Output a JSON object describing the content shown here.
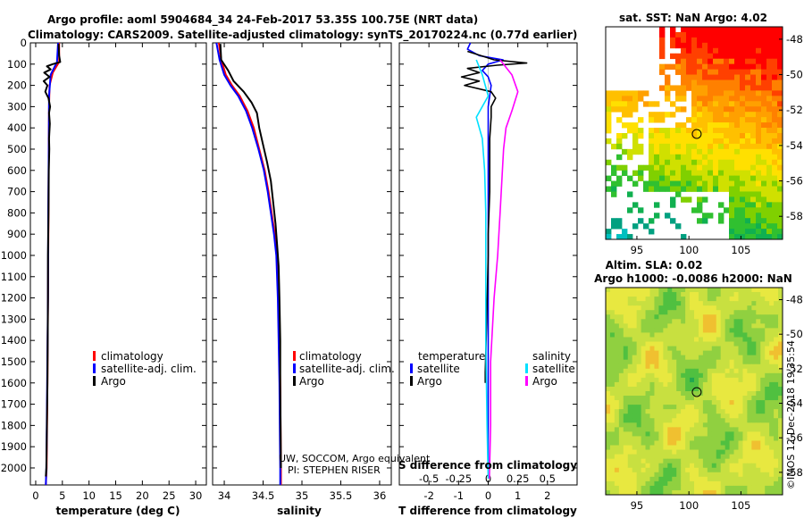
{
  "title": {
    "line1": "Argo profile: aoml 5904684_34 24-Feb-2017 53.35S 100.75E (NRT data)",
    "line2": "Climatology: CARS2009. Satellite-adjusted climatology: synTS_20170224.nc (0.77d earlier)"
  },
  "colors": {
    "climatology": "#ff0000",
    "satellite": "#0000ff",
    "argo": "#000000",
    "argo_salinity_diff": "#ff00ff",
    "satellite_salinity_diff": "#00e0ff"
  },
  "chart_data": [
    {
      "id": "temperature",
      "type": "line",
      "xlabel": "temperature (deg C)",
      "ylabel": "",
      "xlim": [
        -1,
        32
      ],
      "ylim": [
        2080,
        0
      ],
      "xticks": [
        0,
        5,
        10,
        15,
        20,
        25,
        30
      ],
      "yticks": [
        0,
        100,
        200,
        300,
        400,
        500,
        600,
        700,
        800,
        900,
        1000,
        1100,
        1200,
        1300,
        1400,
        1500,
        1600,
        1700,
        1800,
        1900,
        2000
      ],
      "legend": [
        "climatology",
        "satellite-adj. clim.",
        "Argo"
      ],
      "series": [
        {
          "name": "climatology",
          "color": "#ff0000",
          "points": [
            [
              4.4,
              0
            ],
            [
              4.4,
              90
            ],
            [
              3.2,
              140
            ],
            [
              2.6,
              200
            ],
            [
              2.5,
              300
            ],
            [
              2.45,
              500
            ],
            [
              2.4,
              800
            ],
            [
              2.3,
              1200
            ],
            [
              2.2,
              1600
            ],
            [
              2.05,
              2000
            ],
            [
              1.9,
              2080
            ]
          ]
        },
        {
          "name": "satellite-adj. clim.",
          "color": "#0000ff",
          "points": [
            [
              4.2,
              0
            ],
            [
              4.0,
              90
            ],
            [
              2.8,
              150
            ],
            [
              2.5,
              250
            ],
            [
              2.45,
              500
            ],
            [
              2.35,
              800
            ],
            [
              2.3,
              1200
            ],
            [
              2.15,
              1600
            ],
            [
              2.0,
              2000
            ],
            [
              1.9,
              2080
            ]
          ]
        },
        {
          "name": "Argo",
          "color": "#000000",
          "points": [
            [
              4.3,
              5
            ],
            [
              4.4,
              60
            ],
            [
              4.6,
              90
            ],
            [
              3.2,
              100
            ],
            [
              2.1,
              110
            ],
            [
              2.8,
              125
            ],
            [
              1.6,
              140
            ],
            [
              2.6,
              160
            ],
            [
              1.5,
              180
            ],
            [
              2.2,
              200
            ],
            [
              1.8,
              230
            ],
            [
              2.4,
              260
            ],
            [
              2.7,
              300
            ],
            [
              2.5,
              330
            ],
            [
              2.65,
              380
            ],
            [
              2.5,
              450
            ],
            [
              2.55,
              500
            ],
            [
              2.45,
              600
            ],
            [
              2.4,
              800
            ],
            [
              2.3,
              1000
            ],
            [
              2.3,
              1200
            ],
            [
              2.25,
              1400
            ],
            [
              2.2,
              1600
            ],
            [
              2.1,
              1800
            ],
            [
              2.0,
              2000
            ],
            [
              1.9,
              2040
            ]
          ]
        }
      ]
    },
    {
      "id": "salinity",
      "type": "line",
      "xlabel": "salinity",
      "xlim": [
        33.85,
        36.15
      ],
      "ylim": [
        2080,
        0
      ],
      "xticks": [
        34,
        34.5,
        35,
        35.5,
        36
      ],
      "legend": [
        "climatology",
        "satellite-adj. clim.",
        "Argo"
      ],
      "series": [
        {
          "name": "climatology",
          "color": "#ff0000",
          "points": [
            [
              33.93,
              0
            ],
            [
              33.96,
              80
            ],
            [
              34.02,
              150
            ],
            [
              34.1,
              200
            ],
            [
              34.2,
              250
            ],
            [
              34.3,
              320
            ],
            [
              34.38,
              400
            ],
            [
              34.45,
              500
            ],
            [
              34.52,
              600
            ],
            [
              34.57,
              700
            ],
            [
              34.61,
              800
            ],
            [
              34.65,
              900
            ],
            [
              34.68,
              1000
            ],
            [
              34.7,
              1200
            ],
            [
              34.71,
              1400
            ],
            [
              34.72,
              1600
            ],
            [
              34.725,
              1800
            ],
            [
              34.73,
              2000
            ],
            [
              34.73,
              2080
            ]
          ]
        },
        {
          "name": "satellite-adj. clim.",
          "color": "#0000ff",
          "points": [
            [
              33.9,
              0
            ],
            [
              33.94,
              80
            ],
            [
              34.0,
              150
            ],
            [
              34.08,
              200
            ],
            [
              34.18,
              250
            ],
            [
              34.28,
              320
            ],
            [
              34.36,
              400
            ],
            [
              34.44,
              500
            ],
            [
              34.51,
              600
            ],
            [
              34.56,
              700
            ],
            [
              34.6,
              800
            ],
            [
              34.64,
              900
            ],
            [
              34.67,
              1000
            ],
            [
              34.69,
              1200
            ],
            [
              34.7,
              1400
            ],
            [
              34.71,
              1600
            ],
            [
              34.715,
              1800
            ],
            [
              34.72,
              2000
            ],
            [
              34.72,
              2080
            ]
          ]
        },
        {
          "name": "Argo",
          "color": "#000000",
          "points": [
            [
              33.95,
              5
            ],
            [
              33.96,
              80
            ],
            [
              34.05,
              130
            ],
            [
              34.12,
              180
            ],
            [
              34.25,
              230
            ],
            [
              34.35,
              280
            ],
            [
              34.42,
              330
            ],
            [
              34.45,
              400
            ],
            [
              34.5,
              480
            ],
            [
              34.55,
              560
            ],
            [
              34.6,
              650
            ],
            [
              34.63,
              750
            ],
            [
              34.66,
              850
            ],
            [
              34.68,
              950
            ],
            [
              34.7,
              1050
            ],
            [
              34.71,
              1200
            ],
            [
              34.72,
              1400
            ],
            [
              34.72,
              1600
            ],
            [
              34.725,
              1800
            ],
            [
              34.73,
              2000
            ]
          ]
        }
      ]
    },
    {
      "id": "difference",
      "type": "line",
      "xlabel": "T difference from climatology",
      "xlabel_top": "S difference from climatology",
      "xlim": [
        -3,
        3
      ],
      "ylim": [
        2080,
        0
      ],
      "xticks": [
        -2,
        -1,
        0,
        1,
        2
      ],
      "xticks_top": [
        -0.5,
        -0.25,
        0,
        0.25,
        0.5
      ],
      "xtick_labels_top": [
        "-0.5",
        "-0.25",
        "0",
        "0.25",
        "0.5"
      ],
      "legend_temperature_title": "temperature",
      "legend_salinity_title": "salinity",
      "legend_temperature": [
        "satellite",
        "Argo"
      ],
      "legend_salinity": [
        "satellite",
        "Argo"
      ],
      "series": [
        {
          "name": "T satellite",
          "color": "#0000ff",
          "points": [
            [
              -0.6,
              0
            ],
            [
              -0.7,
              30
            ],
            [
              -0.3,
              60
            ],
            [
              0.5,
              80
            ],
            [
              0.0,
              100
            ],
            [
              -0.2,
              130
            ],
            [
              0.0,
              160
            ],
            [
              0.1,
              200
            ],
            [
              0.0,
              300
            ],
            [
              0.0,
              500
            ],
            [
              0.0,
              1000
            ],
            [
              0.0,
              2000
            ]
          ]
        },
        {
          "name": "T Argo",
          "color": "#000000",
          "points": [
            [
              -0.7,
              40
            ],
            [
              0.2,
              80
            ],
            [
              1.3,
              95
            ],
            [
              0.3,
              105
            ],
            [
              -0.7,
              120
            ],
            [
              -0.3,
              140
            ],
            [
              -0.9,
              160
            ],
            [
              -0.3,
              180
            ],
            [
              -0.8,
              200
            ],
            [
              0.1,
              230
            ],
            [
              0.25,
              260
            ],
            [
              0.1,
              300
            ],
            [
              0.1,
              350
            ],
            [
              0.05,
              450
            ],
            [
              0.05,
              550
            ],
            [
              0.05,
              700
            ],
            [
              0.0,
              900
            ],
            [
              0.0,
              1000
            ],
            [
              -0.05,
              1300
            ],
            [
              -0.1,
              1550
            ],
            [
              -0.1,
              1600
            ]
          ]
        },
        {
          "name": "S satellite",
          "color": "#00e0ff",
          "points": [
            [
              -0.1,
              80
            ],
            [
              -0.05,
              150
            ],
            [
              0.0,
              250
            ],
            [
              -0.1,
              350
            ],
            [
              -0.05,
              450
            ],
            [
              -0.03,
              600
            ],
            [
              -0.02,
              800
            ],
            [
              -0.02,
              1000
            ],
            [
              -0.02,
              1400
            ],
            [
              -0.01,
              1800
            ],
            [
              0.0,
              2050
            ]
          ]
        },
        {
          "name": "S Argo",
          "color": "#ff00ff",
          "points": [
            [
              0.1,
              80
            ],
            [
              0.2,
              150
            ],
            [
              0.25,
              230
            ],
            [
              0.2,
              320
            ],
            [
              0.15,
              400
            ],
            [
              0.13,
              500
            ],
            [
              0.12,
              600
            ],
            [
              0.1,
              800
            ],
            [
              0.08,
              1000
            ],
            [
              0.05,
              1200
            ],
            [
              0.02,
              1500
            ],
            [
              0.02,
              1800
            ],
            [
              0.01,
              2050
            ]
          ]
        }
      ]
    },
    {
      "id": "sst_map",
      "type": "heatmap",
      "title": "sat. SST: NaN Argo: 4.02",
      "xticks": [
        95,
        100,
        105
      ],
      "yticks": [
        -48,
        -50,
        -52,
        -54,
        -56,
        -58
      ],
      "xlim": [
        92,
        109
      ],
      "ylim": [
        -59.3,
        -47.3
      ],
      "argo_position": [
        100.75,
        -53.35
      ]
    },
    {
      "id": "sla_map",
      "type": "heatmap",
      "title": "Altim. SLA: 0.02",
      "subtitle": "Argo h1000: -0.0086 h2000: NaN",
      "xticks": [
        95,
        100,
        105
      ],
      "yticks": [
        -48,
        -50,
        -52,
        -54,
        -56,
        -58
      ],
      "xlim": [
        92,
        109
      ],
      "ylim": [
        -59.3,
        -47.3
      ],
      "argo_position": [
        100.75,
        -53.35
      ]
    }
  ],
  "annotations": {
    "credit_line1": "UW, SOCCOM, Argo equivalent",
    "credit_line2": "PI: STEPHEN RISER",
    "stamp": "©IMOS 12-Dec-2018 19:35:54"
  }
}
